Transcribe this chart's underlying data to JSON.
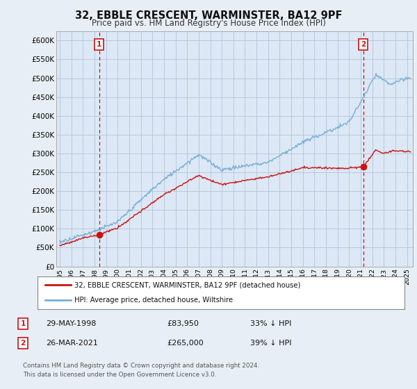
{
  "title": "32, EBBLE CRESCENT, WARMINSTER, BA12 9PF",
  "subtitle": "Price paid vs. HM Land Registry's House Price Index (HPI)",
  "ylim": [
    0,
    625000
  ],
  "xlim_start": 1994.7,
  "xlim_end": 2025.5,
  "bg_color": "#e8eef5",
  "plot_bg_color": "#dce8f5",
  "grid_color": "#b0c4d8",
  "hpi_color": "#7aaed6",
  "price_color": "#cc1111",
  "dashed_color": "#cc1111",
  "legend_label_red": "32, EBBLE CRESCENT, WARMINSTER, BA12 9PF (detached house)",
  "legend_label_blue": "HPI: Average price, detached house, Wiltshire",
  "purchase1_date": "29-MAY-1998",
  "purchase1_price": "£83,950",
  "purchase1_hpi": "33% ↓ HPI",
  "purchase2_date": "26-MAR-2021",
  "purchase2_price": "£265,000",
  "purchase2_hpi": "39% ↓ HPI",
  "footnote": "Contains HM Land Registry data © Crown copyright and database right 2024.\nThis data is licensed under the Open Government Licence v3.0.",
  "marker1_x": 1998.41,
  "marker1_y": 83950,
  "marker2_x": 2021.23,
  "marker2_y": 265000,
  "vline1_x": 1998.41,
  "vline2_x": 2021.23
}
